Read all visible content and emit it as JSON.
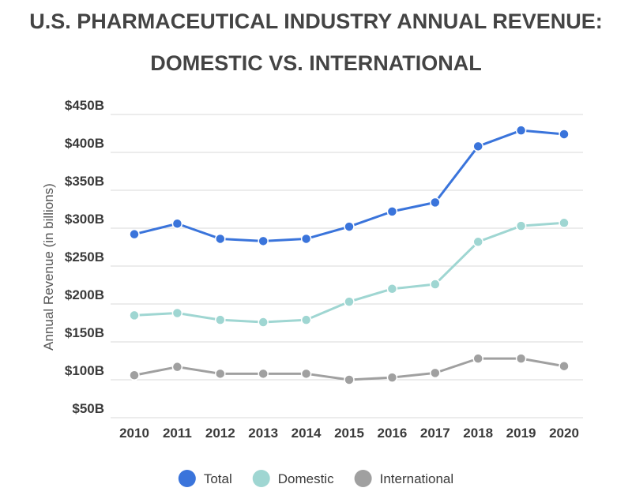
{
  "chart_data": {
    "type": "line",
    "title": "U.S. PHARMACEUTICAL INDUSTRY ANNUAL REVENUE:",
    "subtitle": "DOMESTIC VS. INTERNATIONAL",
    "xlabel": "",
    "ylabel": "Annual Revenue (in billions)",
    "x": [
      "2010",
      "2011",
      "2012",
      "2013",
      "2014",
      "2015",
      "2016",
      "2017",
      "2018",
      "2019",
      "2020"
    ],
    "ylim": [
      50,
      450
    ],
    "yticks": [
      450,
      400,
      350,
      300,
      250,
      200,
      150,
      100,
      50
    ],
    "ytick_labels": [
      "$450B",
      "$400B",
      "$350B",
      "$300B",
      "$250B",
      "$200B",
      "$150B",
      "$100B",
      "$50B"
    ],
    "grid": true,
    "legend_position": "bottom",
    "series": [
      {
        "name": "Total",
        "color": "#3a74db",
        "values": [
          292,
          306,
          286,
          283,
          286,
          302,
          322,
          334,
          408,
          429,
          424
        ]
      },
      {
        "name": "Domestic",
        "color": "#9fd6d2",
        "values": [
          185,
          188,
          179,
          176,
          179,
          203,
          220,
          226,
          282,
          303,
          307
        ]
      },
      {
        "name": "International",
        "color": "#a0a0a0",
        "values": [
          106,
          117,
          108,
          108,
          108,
          100,
          103,
          109,
          128,
          128,
          118
        ]
      }
    ]
  }
}
